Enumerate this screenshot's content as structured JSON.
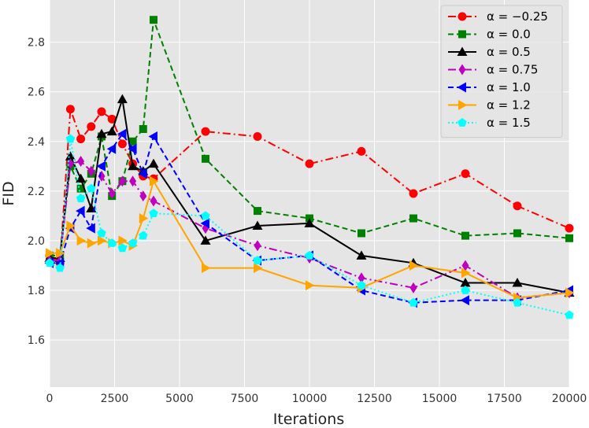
{
  "chart_data": {
    "type": "line",
    "xlabel": "Iterations",
    "ylabel": "FID",
    "xlim": [
      0,
      20000
    ],
    "ylim": [
      1.41,
      2.97
    ],
    "xticks": [
      0,
      2500,
      5000,
      7500,
      10000,
      12500,
      15000,
      17500,
      20000
    ],
    "yticks": [
      1.6,
      1.8,
      2.0,
      2.2,
      2.4,
      2.6,
      2.8
    ],
    "xtick_labels": [
      "0",
      "2500",
      "5000",
      "7500",
      "10000",
      "12500",
      "15000",
      "17500",
      "20000"
    ],
    "ytick_labels": [
      "1.6",
      "1.8",
      "2.0",
      "2.2",
      "2.4",
      "2.6",
      "2.8"
    ],
    "grid": true,
    "legend_position": "top-right",
    "series": [
      {
        "name": "α = −0.25",
        "color": "#ff0000",
        "marker": "circle",
        "linestyle": "dashdot",
        "x": [
          0,
          400,
          800,
          1200,
          1600,
          2000,
          2400,
          2800,
          3200,
          3600,
          4000,
          6000,
          8000,
          10000,
          12000,
          14000,
          16000,
          18000,
          20000
        ],
        "y": [
          1.94,
          1.91,
          2.53,
          2.41,
          2.46,
          2.52,
          2.49,
          2.39,
          2.31,
          2.26,
          2.25,
          2.44,
          2.42,
          2.31,
          2.36,
          2.19,
          2.27,
          2.14,
          2.05
        ]
      },
      {
        "name": "α = 0.0",
        "color": "#008000",
        "marker": "square",
        "linestyle": "dashed",
        "x": [
          0,
          400,
          800,
          1200,
          1600,
          2000,
          2400,
          2800,
          3200,
          3600,
          4000,
          6000,
          8000,
          10000,
          12000,
          14000,
          16000,
          18000,
          20000
        ],
        "y": [
          1.94,
          1.94,
          2.3,
          2.21,
          2.27,
          2.42,
          2.18,
          2.24,
          2.4,
          2.45,
          2.89,
          2.33,
          2.12,
          2.09,
          2.03,
          2.09,
          2.02,
          2.03,
          2.01
        ]
      },
      {
        "name": "α = 0.5",
        "color": "#000000",
        "marker": "triangle-up",
        "linestyle": "solid",
        "x": [
          0,
          400,
          800,
          1200,
          1600,
          2000,
          2400,
          2800,
          3200,
          3600,
          4000,
          6000,
          8000,
          10000,
          12000,
          14000,
          16000,
          18000,
          20000
        ],
        "y": [
          1.93,
          1.93,
          2.34,
          2.25,
          2.13,
          2.43,
          2.44,
          2.57,
          2.3,
          2.28,
          2.31,
          2.0,
          2.06,
          2.07,
          1.94,
          1.91,
          1.83,
          1.83,
          1.79
        ]
      },
      {
        "name": "α = 0.75",
        "color": "#bf00bf",
        "marker": "diamond",
        "linestyle": "dashdot",
        "x": [
          0,
          400,
          800,
          1200,
          1600,
          2000,
          2400,
          2800,
          3200,
          3600,
          4000,
          6000,
          8000,
          10000,
          12000,
          14000,
          16000,
          18000,
          20000
        ],
        "y": [
          1.92,
          1.92,
          2.31,
          2.32,
          2.28,
          2.26,
          2.19,
          2.24,
          2.24,
          2.18,
          2.16,
          2.05,
          1.98,
          1.93,
          1.85,
          1.81,
          1.9,
          1.77,
          1.79
        ]
      },
      {
        "name": "α = 1.0",
        "color": "#0000ff",
        "marker": "triangle-left",
        "linestyle": "dashed",
        "x": [
          0,
          400,
          800,
          1200,
          1600,
          2000,
          2400,
          2800,
          3200,
          3600,
          4000,
          6000,
          8000,
          10000,
          12000,
          14000,
          16000,
          18000,
          20000
        ],
        "y": [
          1.91,
          1.91,
          2.05,
          2.12,
          2.05,
          2.3,
          2.37,
          2.43,
          2.37,
          2.27,
          2.42,
          2.07,
          1.92,
          1.94,
          1.8,
          1.75,
          1.76,
          1.76,
          1.8
        ]
      },
      {
        "name": "α = 1.2",
        "color": "#ffa500",
        "marker": "triangle-right",
        "linestyle": "solid",
        "x": [
          0,
          400,
          800,
          1200,
          1600,
          2000,
          2400,
          2800,
          3200,
          3600,
          4000,
          6000,
          8000,
          10000,
          12000,
          14000,
          16000,
          18000,
          20000
        ],
        "y": [
          1.95,
          1.95,
          2.06,
          2.0,
          1.99,
          2.0,
          1.99,
          2.0,
          1.98,
          2.09,
          2.24,
          1.89,
          1.89,
          1.82,
          1.81,
          1.9,
          1.87,
          1.77,
          1.79
        ]
      },
      {
        "name": "α = 1.5",
        "color": "#00ffff",
        "marker": "pentagon",
        "linestyle": "dotted",
        "x": [
          0,
          400,
          800,
          1200,
          1600,
          2000,
          2400,
          2800,
          3200,
          3600,
          4000,
          6000,
          8000,
          10000,
          12000,
          14000,
          16000,
          18000,
          20000
        ],
        "y": [
          1.91,
          1.89,
          2.41,
          2.17,
          2.21,
          2.03,
          1.99,
          1.97,
          1.99,
          2.02,
          2.11,
          2.1,
          1.92,
          1.94,
          1.82,
          1.75,
          1.8,
          1.75,
          1.7
        ]
      }
    ]
  }
}
